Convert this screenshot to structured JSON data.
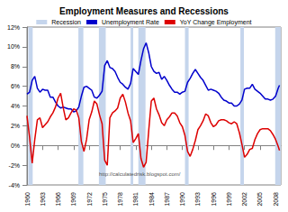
{
  "chart_data": {
    "type": "line",
    "title": "Employment Measures and Recessions",
    "annotations": [
      "http://calculatedrisk.blogspot.com/"
    ],
    "recession_name": "Recession",
    "recession_color": "#c5d5ec",
    "recessions": [
      [
        1960.25,
        1961.1
      ],
      [
        1969.92,
        1970.88
      ],
      [
        1973.88,
        1975.2
      ],
      [
        1980.0,
        1980.5
      ],
      [
        1981.5,
        1982.88
      ],
      [
        1990.5,
        1991.2
      ],
      [
        2001.2,
        2001.88
      ],
      [
        2007.92,
        2009
      ]
    ],
    "x": [
      1960,
      1960.5,
      1961,
      1961.5,
      1962,
      1962.5,
      1963,
      1963.5,
      1964,
      1964.5,
      1965,
      1965.5,
      1966,
      1966.5,
      1967,
      1967.5,
      1968,
      1968.5,
      1969,
      1969.5,
      1970,
      1970.5,
      1971,
      1971.5,
      1972,
      1972.5,
      1973,
      1973.5,
      1974,
      1974.5,
      1975,
      1975.5,
      1976,
      1976.5,
      1977,
      1977.5,
      1978,
      1978.5,
      1979,
      1979.5,
      1980,
      1980.5,
      1981,
      1981.5,
      1982,
      1982.5,
      1983,
      1983.5,
      1984,
      1984.5,
      1985,
      1985.5,
      1986,
      1986.5,
      1987,
      1987.5,
      1988,
      1988.5,
      1989,
      1989.5,
      1990,
      1990.5,
      1991,
      1991.5,
      1992,
      1992.5,
      1993,
      1993.5,
      1994,
      1994.5,
      1995,
      1995.5,
      1996,
      1996.5,
      1997,
      1997.5,
      1998,
      1998.5,
      1999,
      1999.5,
      2000,
      2000.5,
      2001,
      2001.5,
      2002,
      2002.5,
      2003,
      2003.5,
      2004,
      2004.5,
      2005,
      2005.5,
      2006,
      2006.5,
      2007,
      2007.5,
      2008,
      2008.5,
      2008.75
    ],
    "series": [
      {
        "name": "Unemployment Rate",
        "color": "#0000cc",
        "values": [
          5.2,
          5.4,
          6.6,
          7.0,
          5.8,
          5.4,
          5.7,
          5.6,
          5.6,
          4.9,
          4.9,
          4.4,
          4.0,
          3.8,
          3.9,
          3.8,
          3.7,
          3.7,
          3.4,
          3.5,
          3.9,
          5.0,
          5.9,
          6.0,
          5.8,
          5.6,
          4.9,
          4.8,
          5.1,
          5.5,
          8.1,
          8.6,
          7.9,
          7.8,
          7.5,
          6.9,
          6.4,
          6.2,
          5.9,
          5.7,
          6.3,
          7.8,
          7.5,
          7.2,
          8.6,
          9.8,
          10.4,
          9.4,
          8.0,
          7.5,
          7.3,
          7.4,
          6.7,
          7.0,
          6.6,
          6.1,
          5.7,
          5.4,
          5.4,
          5.2,
          5.4,
          5.5,
          6.4,
          6.8,
          7.3,
          7.7,
          7.3,
          6.9,
          6.6,
          6.1,
          5.6,
          5.7,
          5.6,
          5.5,
          5.3,
          4.9,
          4.6,
          4.5,
          4.3,
          4.3,
          4.0,
          4.0,
          4.2,
          4.6,
          5.7,
          5.8,
          5.8,
          6.2,
          5.7,
          5.5,
          5.3,
          5.0,
          4.7,
          4.7,
          4.6,
          4.7,
          5.0,
          5.8,
          6.1
        ]
      },
      {
        "name": "YoY Change Employment",
        "color": "#dd0000",
        "values": [
          3.0,
          0.8,
          -1.8,
          0.6,
          2.6,
          2.8,
          1.8,
          2.1,
          2.4,
          2.9,
          3.3,
          3.9,
          4.8,
          5.3,
          3.8,
          2.6,
          2.8,
          3.3,
          3.7,
          3.6,
          2.8,
          0.4,
          -0.6,
          0.6,
          2.6,
          3.4,
          4.5,
          4.2,
          3.1,
          2.2,
          -1.5,
          -2.0,
          2.8,
          3.3,
          3.5,
          3.8,
          4.8,
          5.2,
          4.4,
          3.3,
          2.5,
          0.3,
          0.7,
          1.2,
          -1.3,
          -2.2,
          -1.7,
          1.5,
          4.5,
          4.8,
          3.7,
          3.1,
          2.3,
          2.0,
          2.6,
          2.9,
          3.3,
          3.3,
          3.0,
          2.3,
          1.9,
          1.0,
          -0.6,
          -1.1,
          -0.4,
          0.5,
          1.6,
          2.0,
          2.5,
          3.2,
          3.0,
          2.3,
          1.9,
          2.1,
          2.5,
          2.6,
          2.6,
          2.5,
          2.3,
          2.2,
          2.4,
          2.2,
          1.3,
          0.1,
          -1.2,
          -0.9,
          -0.4,
          -0.3,
          0.6,
          1.2,
          1.6,
          1.7,
          1.7,
          1.7,
          1.5,
          1.1,
          0.6,
          -0.1,
          -0.5
        ]
      }
    ],
    "xlim": [
      1960,
      2009
    ],
    "xticks": [
      1960,
      1963,
      1966,
      1969,
      1972,
      1975,
      1978,
      1981,
      1984,
      1987,
      1990,
      1993,
      1996,
      1999,
      2002,
      2005,
      2008
    ],
    "ylim": [
      -4,
      12
    ],
    "yticks": [
      {
        "value": -4,
        "label": "-4%"
      },
      {
        "value": -2,
        "label": "-2%"
      },
      {
        "value": 0,
        "label": "0%"
      },
      {
        "value": 2,
        "label": "2%"
      },
      {
        "value": 4,
        "label": "4%"
      },
      {
        "value": 6,
        "label": "6%"
      },
      {
        "value": 8,
        "label": "8%"
      },
      {
        "value": 10,
        "label": "10%"
      },
      {
        "value": 12,
        "label": "12%"
      }
    ],
    "grid": false,
    "legend": "top"
  }
}
